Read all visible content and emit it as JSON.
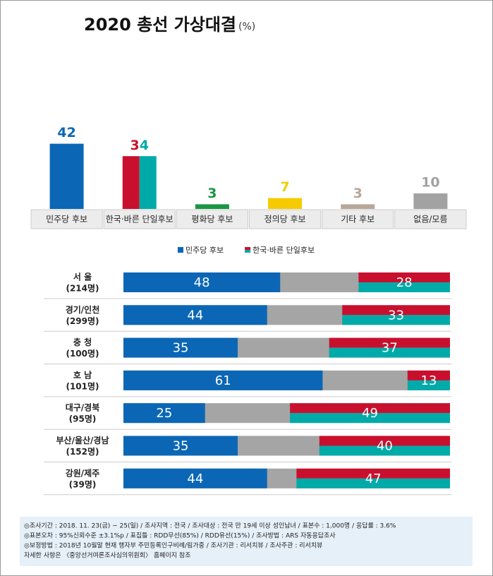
{
  "title": "2020 총선 가상대결",
  "title_unit": "(%)",
  "chart_data": [
    {
      "type": "bar",
      "categories": [
        "민주당 후보",
        "한국·바른 단일후보",
        "평화당 후보",
        "정의당 후보",
        "기타 후보",
        "없음/모름"
      ],
      "values": [
        42,
        34,
        3,
        7,
        3,
        10
      ],
      "colors": [
        "#0b67b5",
        [
          "#c8102e",
          "#00aaa8"
        ],
        "#1a9641",
        "#f5cb00",
        "#b7a69a",
        "#a2a2a2"
      ]
    },
    {
      "type": "stacked_bar_h",
      "categories": [
        "서 울",
        "경기/인천",
        "충 청",
        "호 남",
        "대구/경북",
        "부산/울산/경남",
        "강원/제주"
      ],
      "sample_sizes": [
        "(214명)",
        "(299명)",
        "(100명)",
        "(101명)",
        "(95명)",
        "(152명)",
        "(39명)"
      ],
      "series": [
        {
          "name": "민주당 후보",
          "color": "#0b67b5",
          "values": [
            48,
            44,
            35,
            61,
            25,
            35,
            44
          ]
        },
        {
          "name": "한국·바른 단일후보",
          "color": [
            "#c8102e",
            "#00aaa8"
          ],
          "values": [
            28,
            33,
            37,
            13,
            49,
            40,
            47
          ]
        }
      ]
    }
  ],
  "notes": [
    "◎조사기간 : 2018. 11. 23(금) ~ 25(일) / 조사지역 : 전국 / 조사대상 : 전국 만 19세 이상 성인남녀 / 표본수 : 1,000명 / 응답률 : 3.6%",
    "◎표본오차 : 95%신뢰수준 ±3.1%p  / 표집틀 : RDD무선(85%) / RDD유선(15%) / 조사방법 : ARS 자동응답조사",
    "◎보정방법 : 2018년 10월말 현재 행자부 주민등록인구비례/림가중 / 조사기관 : 리서치뷰 / 조사주관 : 리서치뷰",
    "자세한 사항은 〈중앙선거여론조사심의위원회〉 홈페이지 참조"
  ]
}
